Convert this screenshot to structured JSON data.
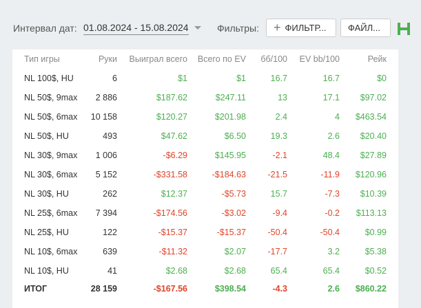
{
  "toolbar": {
    "interval_label": "Интервал дат:",
    "date_range": "01.08.2024 - 15.08.2024",
    "filters_label": "Фильтры:",
    "filter_button": "ФИЛЬТР...",
    "file_button": "ФАЙЛ..."
  },
  "table": {
    "headers": [
      "Тип игры",
      "Руки",
      "Выиграл всего",
      "Всего по EV",
      "бб/100",
      "EV bb/100",
      "Рейк"
    ],
    "rows": [
      [
        "NL 100$, HU",
        "6",
        "$1",
        "$1",
        "16.7",
        "16.7",
        "$0"
      ],
      [
        "NL 50$, 9max",
        "2 886",
        "$187.62",
        "$247.11",
        "13",
        "17.1",
        "$97.02"
      ],
      [
        "NL 50$, 6max",
        "10 158",
        "$120.27",
        "$201.98",
        "2.4",
        "4",
        "$463.54"
      ],
      [
        "NL 50$, HU",
        "493",
        "$47.62",
        "$6.50",
        "19.3",
        "2.6",
        "$20.40"
      ],
      [
        "NL 30$, 9max",
        "1 006",
        "-$6.29",
        "$145.95",
        "-2.1",
        "48.4",
        "$27.89"
      ],
      [
        "NL 30$, 6max",
        "5 152",
        "-$331.58",
        "-$184.63",
        "-21.5",
        "-11.9",
        "$120.96"
      ],
      [
        "NL 30$, HU",
        "262",
        "$12.37",
        "-$5.73",
        "15.7",
        "-7.3",
        "$10.39"
      ],
      [
        "NL 25$, 6max",
        "7 394",
        "-$174.56",
        "-$3.02",
        "-9.4",
        "-0.2",
        "$113.13"
      ],
      [
        "NL 25$, HU",
        "122",
        "-$15.37",
        "-$15.37",
        "-50.4",
        "-50.4",
        "$0.99"
      ],
      [
        "NL 10$, 6max",
        "639",
        "-$11.32",
        "$2.07",
        "-17.7",
        "3.2",
        "$5.38"
      ],
      [
        "NL 10$, HU",
        "41",
        "$2.68",
        "$2.68",
        "65.4",
        "65.4",
        "$0.52"
      ]
    ],
    "total": [
      "ИТОГ",
      "28 159",
      "-$167.56",
      "$398.54",
      "-4.3",
      "2.6",
      "$860.22"
    ]
  }
}
